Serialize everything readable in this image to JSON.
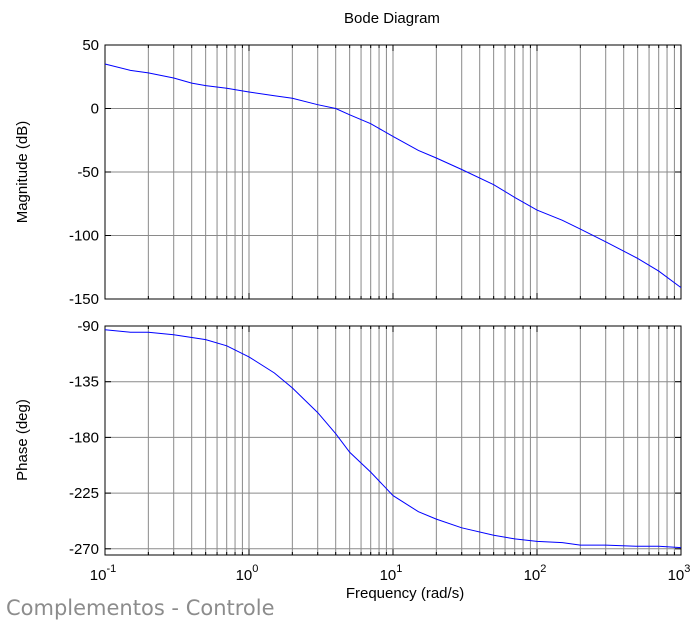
{
  "footer": {
    "text": "Complementos - Controle"
  },
  "chart_data": [
    {
      "type": "line",
      "title": "Bode Diagram",
      "xlabel": "",
      "ylabel": "Magnitude (dB)",
      "xscale": "log",
      "xlim": [
        0.1,
        1000
      ],
      "ylim": [
        -150,
        50
      ],
      "yticks": [
        50,
        0,
        -50,
        -100,
        -150
      ],
      "ytick_labels": [
        "50",
        "0",
        "-50",
        "-100",
        "-150"
      ],
      "grid": true,
      "series": [
        {
          "color": "#0000ff",
          "x": [
            0.1,
            0.15,
            0.2,
            0.3,
            0.4,
            0.5,
            0.7,
            1,
            1.5,
            2,
            3,
            4,
            5,
            7,
            10,
            15,
            20,
            30,
            50,
            70,
            100,
            150,
            200,
            300,
            500,
            700,
            1000
          ],
          "y": [
            35,
            30,
            28,
            24,
            20,
            18,
            16,
            13,
            10,
            8,
            3,
            0,
            -5,
            -12,
            -22,
            -33,
            -39,
            -48,
            -60,
            -70,
            -80,
            -88,
            -95,
            -105,
            -118,
            -128,
            -141
          ]
        }
      ]
    },
    {
      "type": "line",
      "xlabel": "Frequency  (rad/s)",
      "ylabel": "Phase (deg)",
      "xscale": "log",
      "xlim": [
        0.1,
        1000
      ],
      "ylim": [
        -275,
        -90
      ],
      "yticks": [
        -90,
        -135,
        -180,
        -225,
        -270
      ],
      "ytick_labels": [
        "-90",
        "-135",
        "-180",
        "-225",
        "-270"
      ],
      "xticks": [
        0.1,
        1,
        10,
        100,
        1000
      ],
      "xtick_labels": [
        {
          "base": "10",
          "exp": "-1"
        },
        {
          "base": "10",
          "exp": "0"
        },
        {
          "base": "10",
          "exp": "1"
        },
        {
          "base": "10",
          "exp": "2"
        },
        {
          "base": "10",
          "exp": "3"
        }
      ],
      "grid": true,
      "series": [
        {
          "color": "#0000ff",
          "x": [
            0.1,
            0.15,
            0.2,
            0.3,
            0.5,
            0.7,
            1,
            1.5,
            2,
            3,
            4,
            5,
            7,
            10,
            15,
            20,
            30,
            50,
            70,
            100,
            150,
            200,
            300,
            500,
            700,
            1000
          ],
          "y": [
            -93,
            -95,
            -95,
            -97,
            -101,
            -106,
            -115,
            -128,
            -140,
            -160,
            -177,
            -192,
            -208,
            -227,
            -240,
            -246,
            -253,
            -259,
            -262,
            -264,
            -265,
            -267,
            -267,
            -268,
            -268,
            -269
          ]
        }
      ]
    }
  ]
}
